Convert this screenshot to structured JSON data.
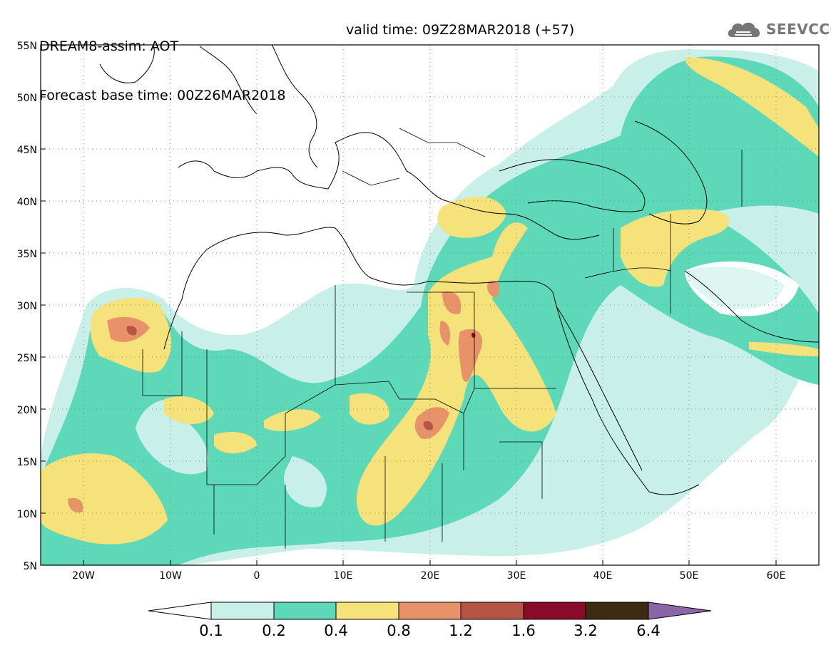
{
  "header": {
    "title": "DREAM8-assim: AOT",
    "base_time": "Forecast base time: 00Z26MAR2018",
    "valid_time": "valid time: 09Z28MAR2018 (+57)"
  },
  "logo": {
    "text": "SEEVCCC",
    "icon": "cloud-icon"
  },
  "map": {
    "lat_labels": [
      "55N",
      "50N",
      "45N",
      "40N",
      "35N",
      "30N",
      "25N",
      "20N",
      "15N",
      "10N",
      "5N"
    ],
    "lon_labels": [
      "20W",
      "10W",
      "0",
      "10E",
      "20E",
      "30E",
      "40E",
      "50E",
      "60E"
    ]
  },
  "legend": {
    "thresholds": [
      "0.1",
      "0.2",
      "0.4",
      "0.8",
      "1.2",
      "1.6",
      "3.2",
      "6.4"
    ],
    "colors": [
      "#c8f0e8",
      "#5ed9b8",
      "#f5e27a",
      "#e8926a",
      "#b55645",
      "#8a0a2a",
      "#3d2a12"
    ],
    "over_color": "#8a66a8",
    "under_color": "#ffffff"
  }
}
